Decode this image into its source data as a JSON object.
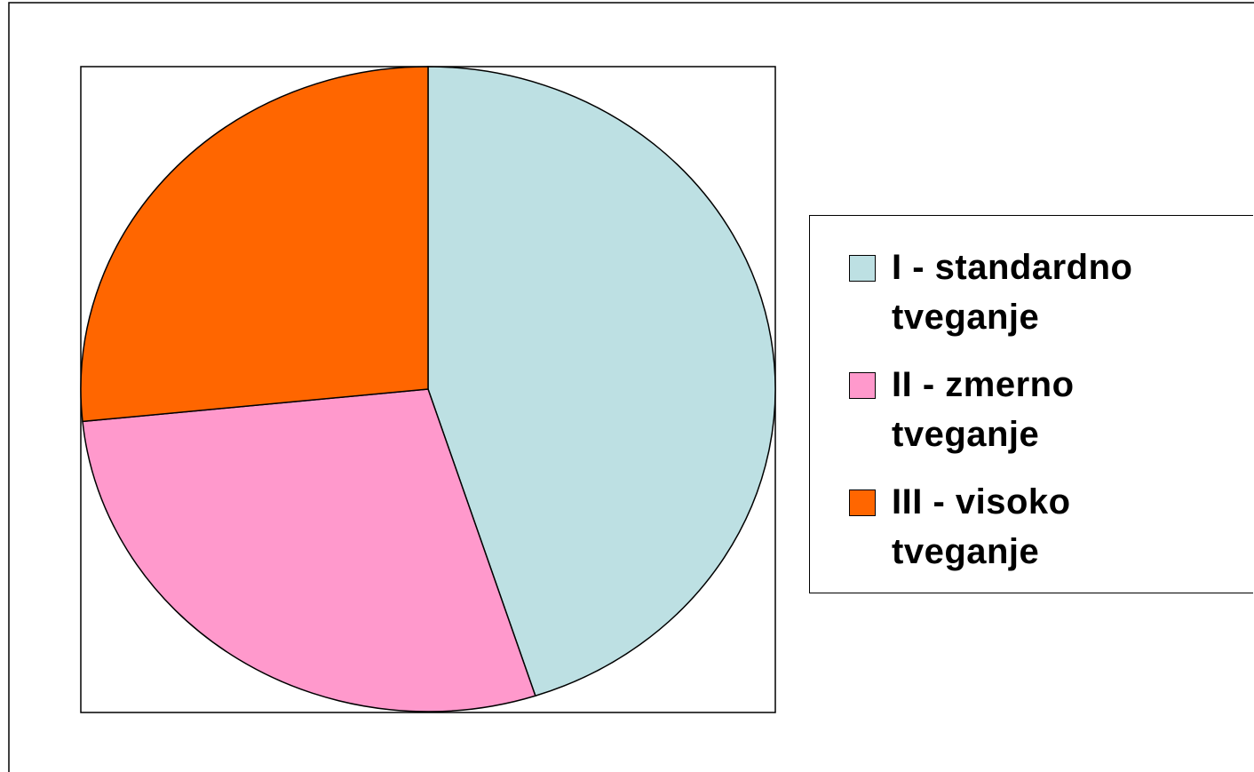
{
  "chart_data": {
    "type": "pie",
    "categories": [
      "I - standardno tveganje",
      "II - zmerno tveganje",
      "III - visoko tveganje"
    ],
    "values": [
      45,
      28.4,
      26.6
    ],
    "colors": [
      "#bde0e3",
      "#ff99cc",
      "#ff6600"
    ],
    "legend": "right"
  }
}
